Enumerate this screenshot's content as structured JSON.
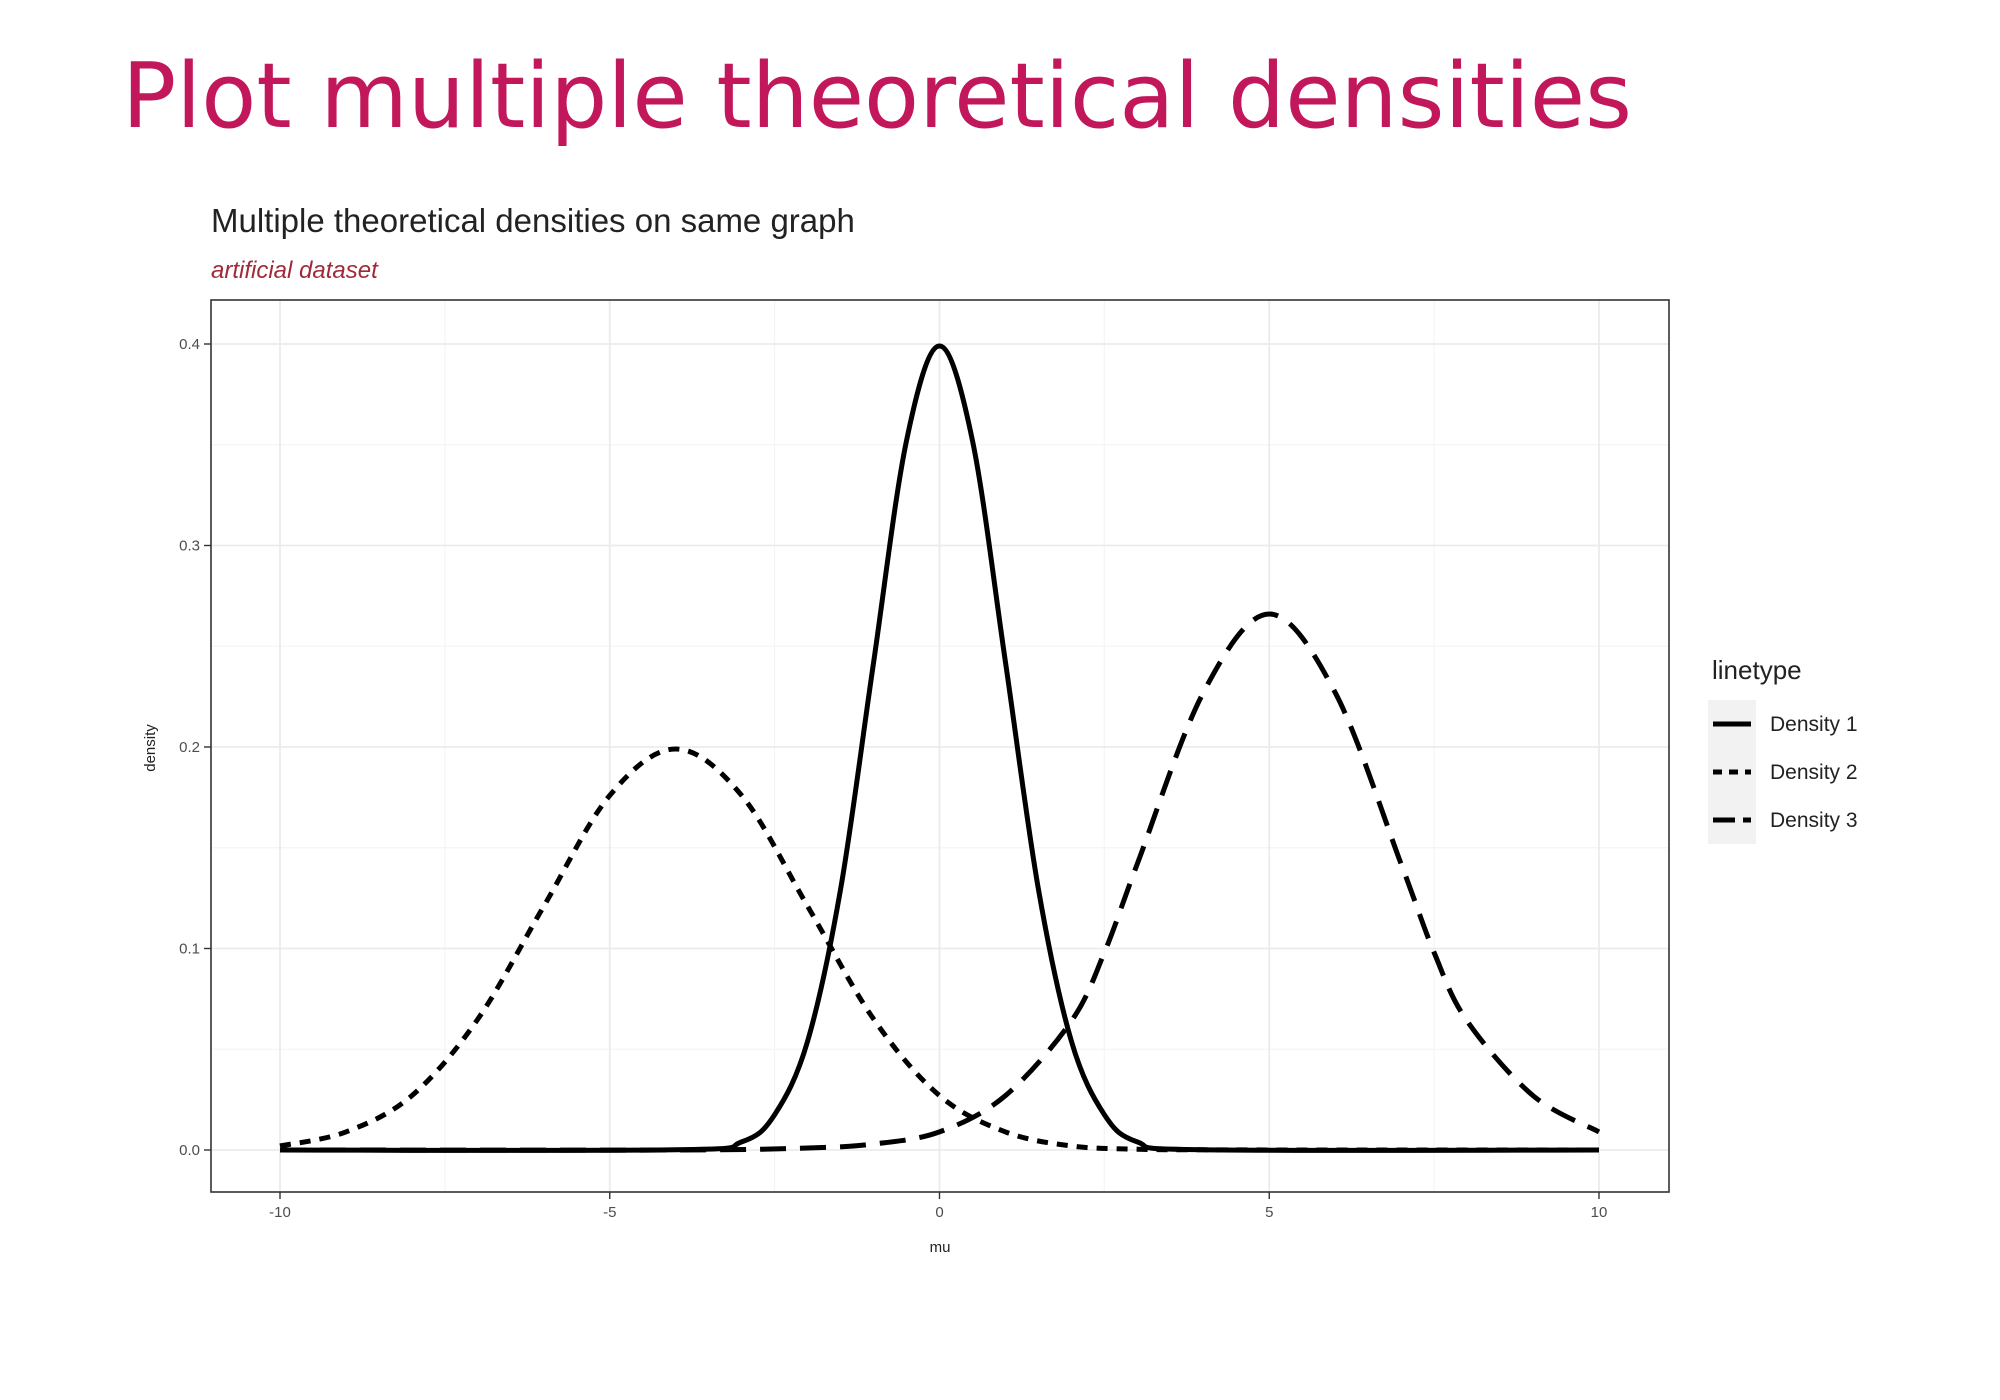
{
  "slide": {
    "title": "Plot multiple theoretical densities"
  },
  "colors": {
    "slide_title": "#c2185b",
    "subtitle": "#a12a3a",
    "series": "#000000",
    "grid": "#ebebeb",
    "panel_border": "#333333",
    "legend_key_bg": "#f2f2f2"
  },
  "chart_data": {
    "type": "line",
    "title": "Multiple theoretical densities on same graph",
    "subtitle": "artificial dataset",
    "xlabel": "mu",
    "ylabel": "density",
    "xlim": [
      -10,
      10
    ],
    "ylim": [
      0,
      0.4
    ],
    "x_ticks": [
      -10,
      -5,
      0,
      5,
      10
    ],
    "x_tick_labels": [
      "-10",
      "-5",
      "0",
      "5",
      "10"
    ],
    "y_ticks": [
      0.0,
      0.1,
      0.2,
      0.3,
      0.4
    ],
    "y_tick_labels": [
      "0.0",
      "0.1",
      "0.2",
      "0.3",
      "0.4"
    ],
    "grid": true,
    "legend": {
      "title": "linetype",
      "position": "right"
    },
    "series": [
      {
        "name": "Density 1",
        "linetype": "solid",
        "x": [
          -10,
          -4,
          -3,
          -2.5,
          -2,
          -1.5,
          -1,
          -0.5,
          0,
          0.5,
          1,
          1.5,
          2,
          2.5,
          3,
          4,
          10
        ],
        "values": [
          0.0,
          0.0001,
          0.004,
          0.0175,
          0.054,
          0.1295,
          0.242,
          0.352,
          0.399,
          0.352,
          0.242,
          0.1295,
          0.054,
          0.0175,
          0.004,
          0.0001,
          0.0
        ]
      },
      {
        "name": "Density 2",
        "linetype": "dotted",
        "x": [
          -10,
          -9,
          -8,
          -7,
          -6,
          -5,
          -4,
          -3,
          -2,
          -1,
          0,
          1,
          2,
          3,
          4,
          6,
          10
        ],
        "values": [
          0.002,
          0.009,
          0.027,
          0.065,
          0.121,
          0.176,
          0.199,
          0.176,
          0.121,
          0.065,
          0.027,
          0.009,
          0.002,
          0.0004,
          0.0001,
          0.0,
          0.0
        ]
      },
      {
        "name": "Density 3",
        "linetype": "dashed",
        "x": [
          -10,
          -4,
          -2,
          -1,
          0,
          1,
          2,
          2.5,
          3,
          4,
          5,
          6,
          7,
          7.5,
          8,
          9,
          10
        ],
        "values": [
          0.0,
          0.0,
          0.001,
          0.003,
          0.009,
          0.027,
          0.064,
          0.098,
          0.142,
          0.227,
          0.266,
          0.227,
          0.142,
          0.098,
          0.064,
          0.027,
          0.009
        ]
      }
    ]
  }
}
